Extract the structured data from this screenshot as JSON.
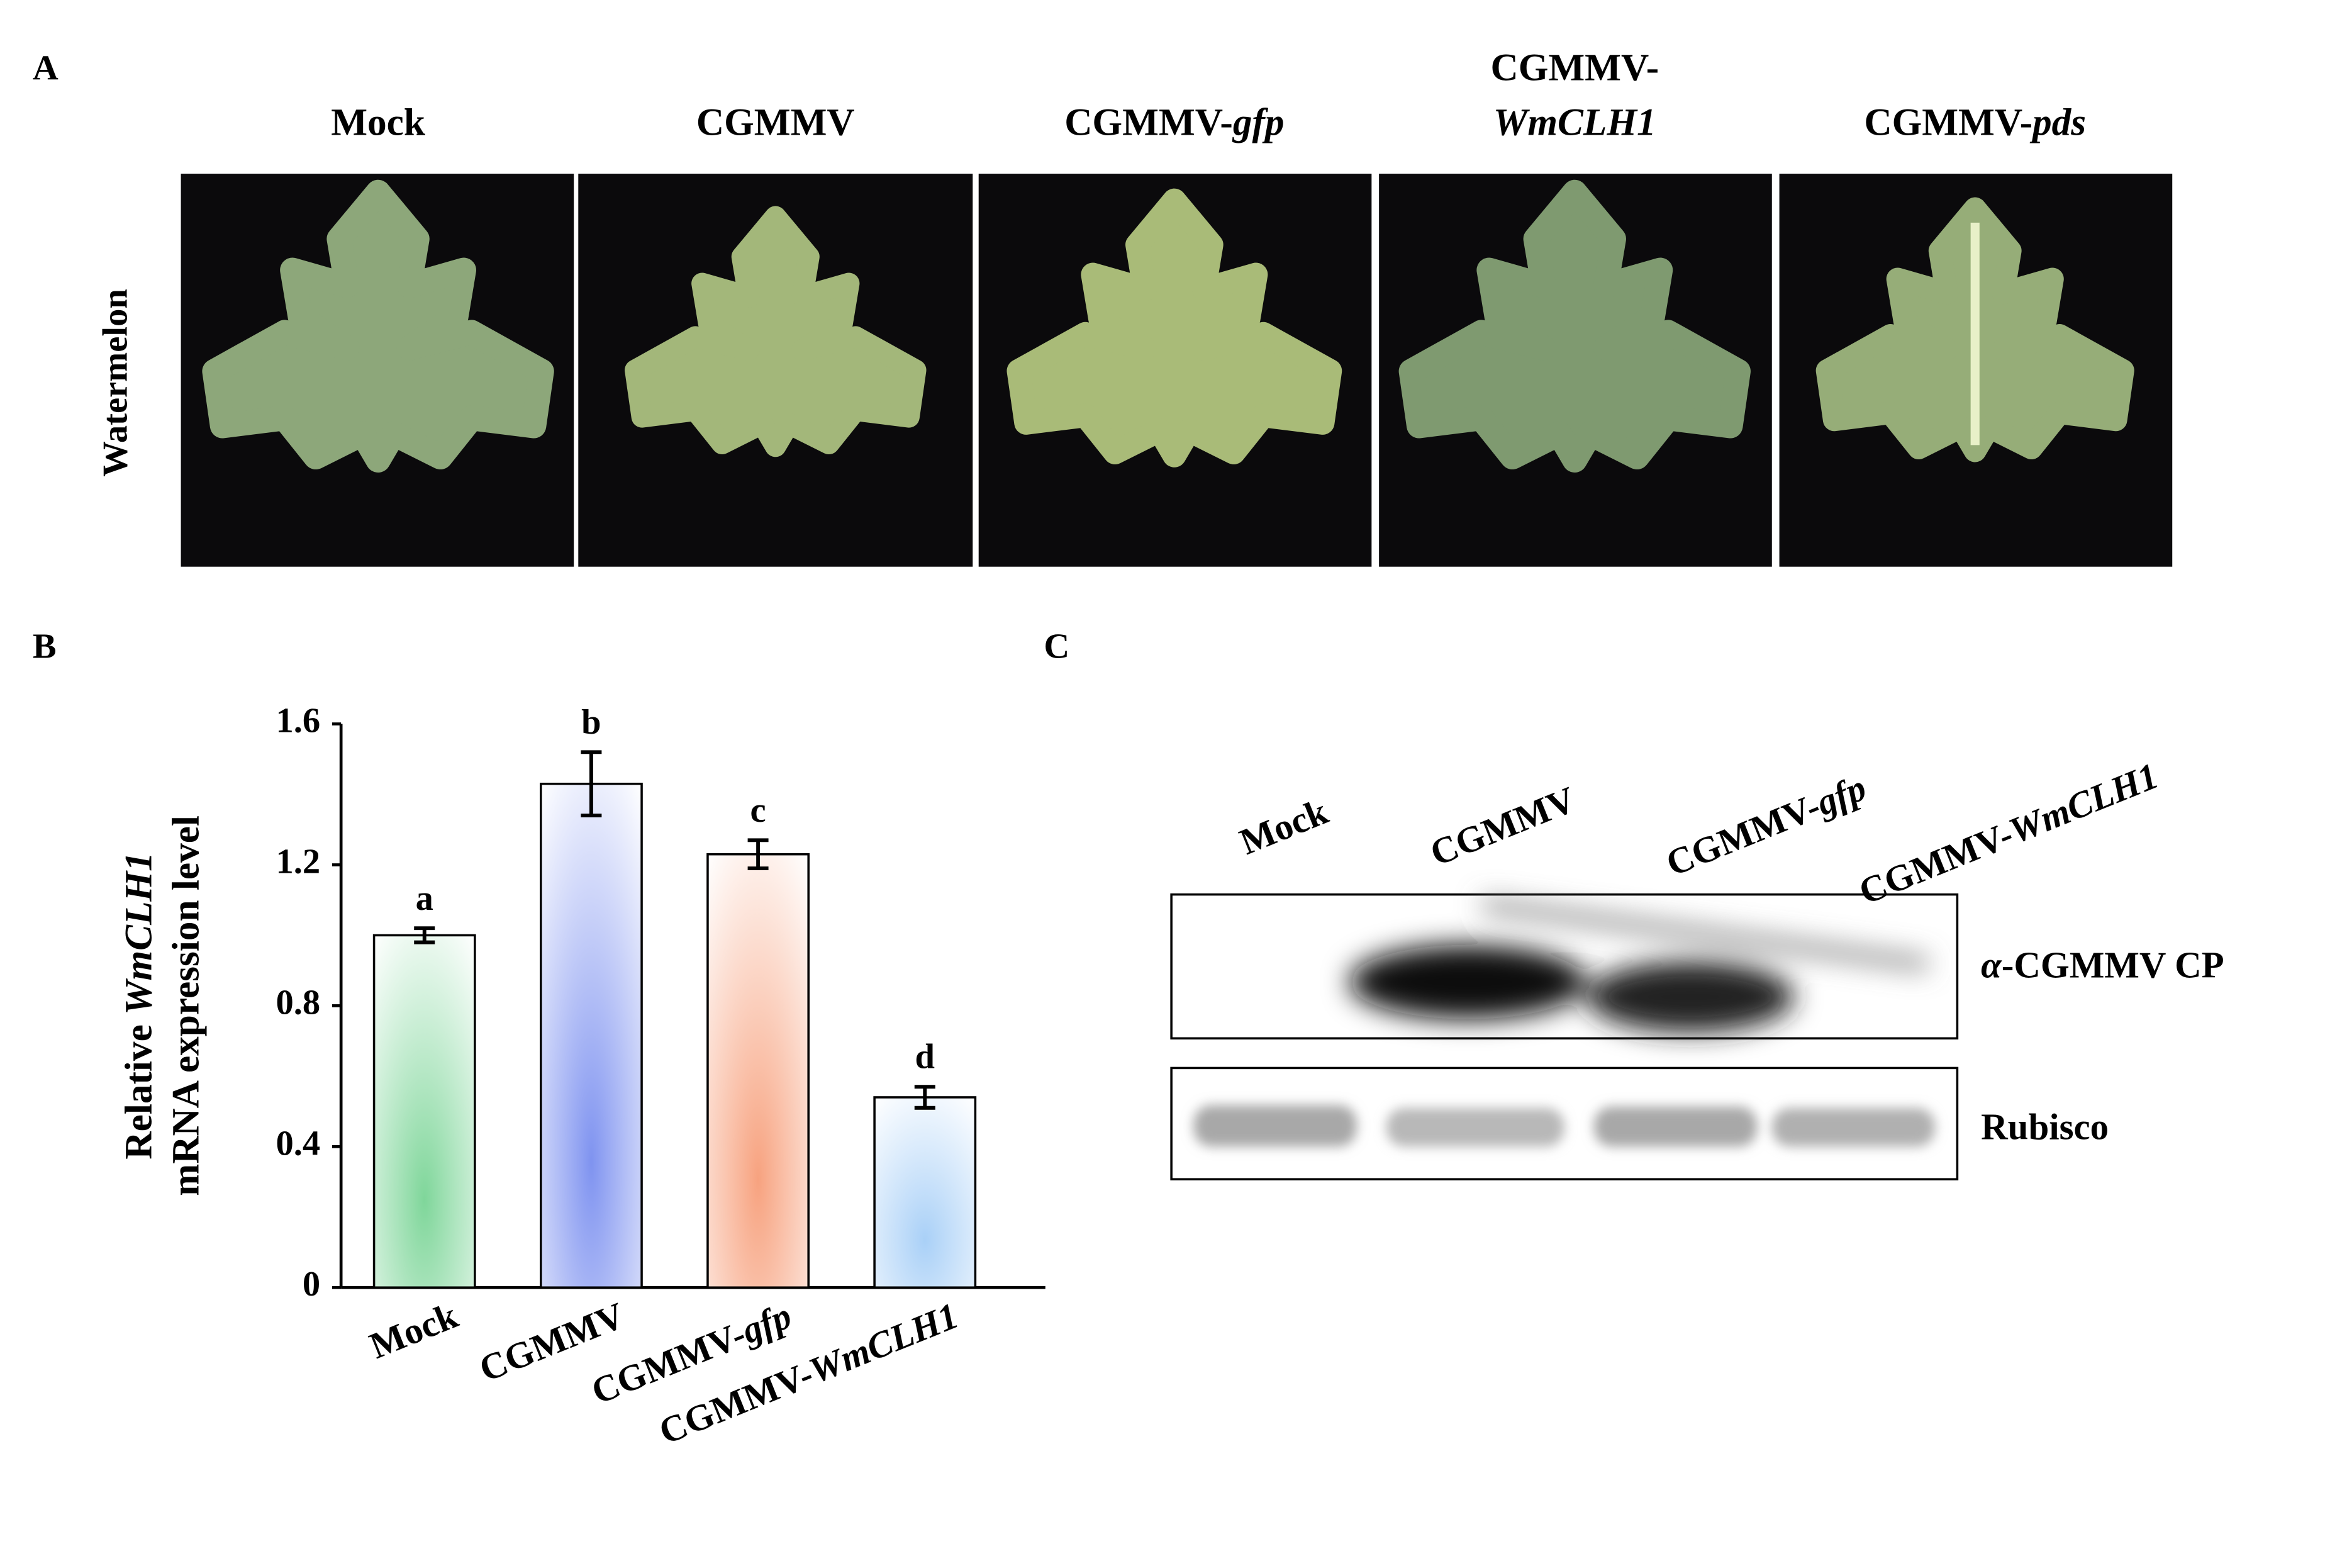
{
  "panel_a": {
    "letter": "A",
    "row_label": "Watermelon",
    "columns": [
      [
        [
          {
            "text": "Mock"
          }
        ]
      ],
      [
        [
          {
            "text": "CGMMV"
          }
        ]
      ],
      [
        [
          {
            "text": "CGMMV-"
          },
          {
            "text": "gfp",
            "italic": true
          }
        ]
      ],
      [
        [
          {
            "text": "CGMMV-"
          }
        ],
        [
          {
            "text": "WmCLH1",
            "italic": true
          }
        ]
      ],
      [
        [
          {
            "text": "CGMMV-"
          },
          {
            "text": "pds",
            "italic": true
          }
        ]
      ]
    ]
  },
  "chart_data": {
    "type": "bar",
    "letter": "B",
    "y_label": [
      [
        {
          "text": "Relative "
        },
        {
          "text": "WmCLH1",
          "italic": true
        }
      ],
      [
        {
          "text": "mRNA expression level"
        }
      ]
    ],
    "categories": [
      "Mock",
      "CGMMV",
      "CGMMV-gfp",
      "CGMMV-WmCLH1"
    ],
    "values": [
      1.0,
      1.43,
      1.23,
      0.54
    ],
    "errors": [
      0.02,
      0.09,
      0.04,
      0.03
    ],
    "annotations": [
      "a",
      "b",
      "c",
      "d"
    ],
    "colors": [
      "#7fd69a",
      "#7f93f0",
      "#f7a27f",
      "#a9d0f7"
    ],
    "ylim": [
      0,
      1.6
    ],
    "yticks": [
      0,
      0.4,
      0.8,
      1.2,
      1.6
    ]
  },
  "panel_c": {
    "letter": "C",
    "lanes": [
      [
        {
          "text": "Mock"
        }
      ],
      [
        {
          "text": "CGMMV"
        }
      ],
      [
        {
          "text": "CGMMV-"
        },
        {
          "text": "gfp",
          "italic": true
        }
      ],
      [
        {
          "text": "CGMMV-"
        },
        {
          "text": "WmCLH1",
          "italic": true
        }
      ]
    ],
    "rows": [
      [
        {
          "text": "α",
          "italic": true
        },
        {
          "text": "-CGMMV CP"
        }
      ],
      [
        {
          "text": "Rubisco"
        }
      ]
    ]
  }
}
